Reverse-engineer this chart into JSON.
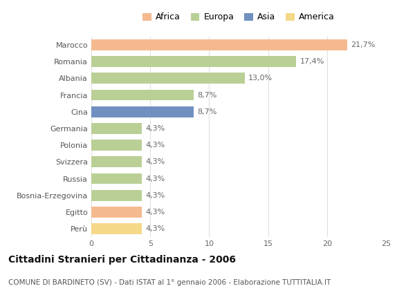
{
  "countries": [
    "Marocco",
    "Romania",
    "Albania",
    "Francia",
    "Cina",
    "Germania",
    "Polonia",
    "Svizzera",
    "Russia",
    "Bosnia-Erzegovina",
    "Egitto",
    "Perù"
  ],
  "values": [
    21.7,
    17.4,
    13.0,
    8.7,
    8.7,
    4.3,
    4.3,
    4.3,
    4.3,
    4.3,
    4.3,
    4.3
  ],
  "continents": [
    "Africa",
    "Europa",
    "Europa",
    "Europa",
    "Asia",
    "Europa",
    "Europa",
    "Europa",
    "Europa",
    "Europa",
    "Africa",
    "America"
  ],
  "colors": {
    "Africa": "#F5B990",
    "Europa": "#BACF96",
    "Asia": "#7090C0",
    "America": "#F5D888"
  },
  "legend_order": [
    "Africa",
    "Europa",
    "Asia",
    "America"
  ],
  "title": "Cittadini Stranieri per Cittadinanza - 2006",
  "subtitle": "COMUNE DI BARDINETO (SV) - Dati ISTAT al 1° gennaio 2006 - Elaborazione TUTTITALIA.IT",
  "xlim": [
    0,
    25
  ],
  "xticks": [
    0,
    5,
    10,
    15,
    20,
    25
  ],
  "background_color": "#ffffff",
  "bar_height": 0.65,
  "title_fontsize": 10,
  "subtitle_fontsize": 7.5,
  "label_fontsize": 8,
  "tick_fontsize": 8,
  "legend_fontsize": 9,
  "grid_color": "#e0e0e0"
}
